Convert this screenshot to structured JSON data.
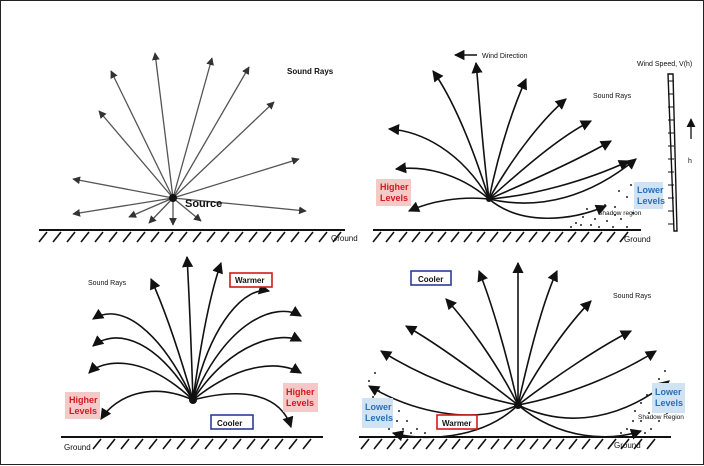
{
  "panel1": {
    "title": "Sound Rays",
    "source_label": "Source",
    "ground_label": "Ground"
  },
  "panel2": {
    "wind_direction_label": "Wind Direction",
    "wind_speed_label": "Wind Speed, V(h)",
    "h_label": "h",
    "sound_rays_label": "Sound Rays",
    "higher_label": "Higher\nLevels",
    "lower_label": "Lower\nLevels",
    "shadow_label": "Shadow region",
    "ground_label": "Ground"
  },
  "panel3": {
    "sound_rays_label": "Sound Rays",
    "warmer_label": "Warmer",
    "cooler_label": "Cooler",
    "higher_left_label": "Higher\nLevels",
    "higher_right_label": "Higher\nLevels",
    "ground_label": "Ground"
  },
  "panel4": {
    "cooler_label": "Cooler",
    "sound_rays_label": "Sound Rays",
    "lower_left_label": "Lower\nLevels",
    "lower_right_label": "Lower\nLevels",
    "warmer_label": "Warmer",
    "shadow_label": "Shadow Region",
    "ground_label": "Ground"
  },
  "colors": {
    "warm_highlight": "#f6c9c9",
    "warm_text": "#d11a1a",
    "cool_highlight": "#cfe3f5",
    "cool_text": "#2a6fb5",
    "warmer_box": "#d11a1a",
    "cooler_box": "#2b3b9c"
  }
}
